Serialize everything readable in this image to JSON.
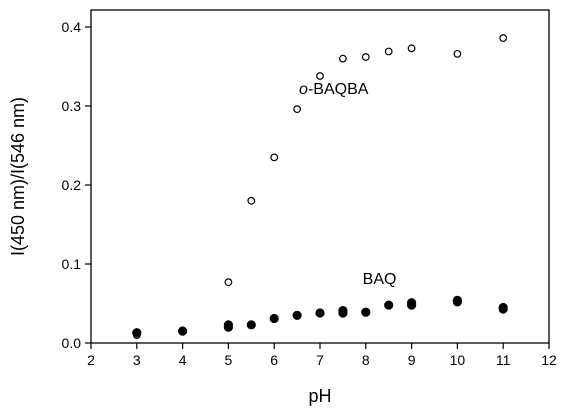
{
  "chart_data": {
    "type": "scatter",
    "title": "",
    "xlabel": "pH",
    "ylabel": "I(450 nm)/I(546 nm)",
    "xlim": [
      2,
      12
    ],
    "ylim": [
      0,
      0.42
    ],
    "x_ticks": [
      "2",
      "3",
      "4",
      "5",
      "6",
      "7",
      "8",
      "9",
      "10",
      "11",
      "12"
    ],
    "y_ticks": [
      "0.0",
      "0.1",
      "0.2",
      "0.3",
      "0.4"
    ],
    "grid": false,
    "legend": "none",
    "annotations": [
      {
        "text_prefix": "o",
        "text_suffix": "-BAQBA",
        "x": 7.3,
        "y": 0.315
      },
      {
        "text": "BAQ",
        "x": 8.3,
        "y": 0.075
      }
    ],
    "series": [
      {
        "marker": "open-circle",
        "color": "#000000",
        "points": [
          [
            3,
            0.01
          ],
          [
            3,
            0.012
          ],
          [
            4,
            0.016
          ],
          [
            5,
            0.077
          ],
          [
            5.5,
            0.18
          ],
          [
            6,
            0.235
          ],
          [
            6.5,
            0.296
          ],
          [
            7,
            0.338
          ],
          [
            7.5,
            0.36
          ],
          [
            8,
            0.362
          ],
          [
            8.5,
            0.369
          ],
          [
            9,
            0.373
          ],
          [
            10,
            0.366
          ],
          [
            11,
            0.386
          ]
        ]
      },
      {
        "marker": "filled-circle",
        "color": "#000000",
        "points": [
          [
            3,
            0.013
          ],
          [
            4,
            0.015
          ],
          [
            5,
            0.02
          ],
          [
            5,
            0.023
          ],
          [
            5.5,
            0.023
          ],
          [
            6,
            0.031
          ],
          [
            6.5,
            0.035
          ],
          [
            7,
            0.038
          ],
          [
            7.5,
            0.038
          ],
          [
            7.5,
            0.041
          ],
          [
            8,
            0.039
          ],
          [
            8.5,
            0.048
          ],
          [
            9,
            0.048
          ],
          [
            9,
            0.051
          ],
          [
            10,
            0.052
          ],
          [
            10,
            0.054
          ],
          [
            11,
            0.043
          ],
          [
            11,
            0.045
          ]
        ]
      }
    ]
  }
}
